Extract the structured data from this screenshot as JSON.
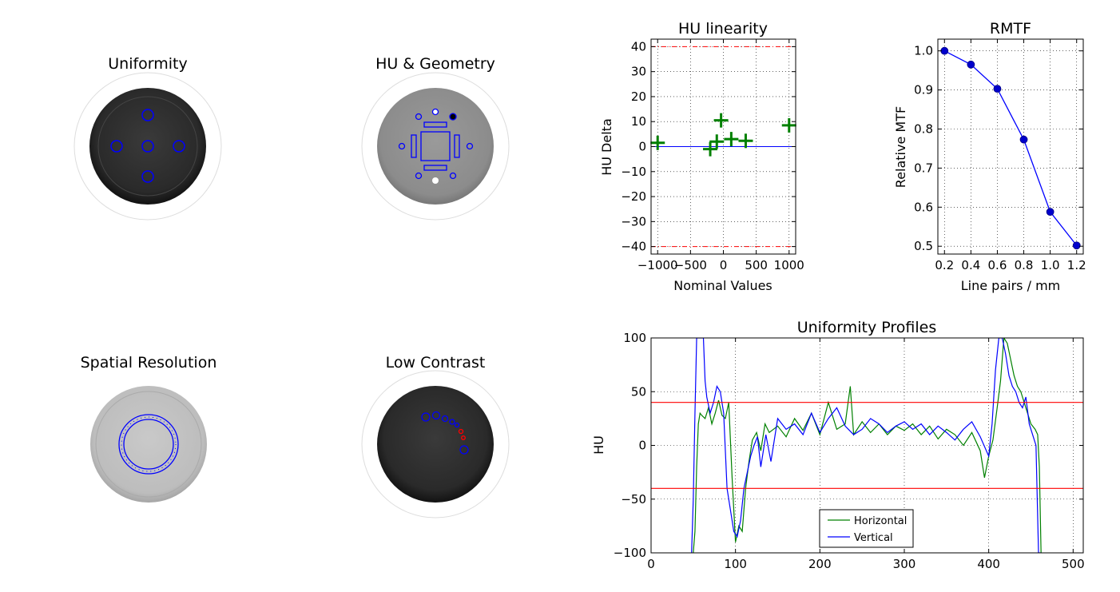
{
  "panels": {
    "uniformity_title": "Uniformity",
    "hu_geometry_title": "HU & Geometry",
    "spatial_resolution_title": "Spatial Resolution",
    "low_contrast_title": "Low Contrast"
  },
  "chart_data": [
    {
      "type": "scatter",
      "title": "HU linearity",
      "xlabel": "Nominal Values",
      "ylabel": "HU Delta",
      "xlim": [
        -1100,
        1100
      ],
      "ylim": [
        -43,
        43
      ],
      "xticks": [
        "−1000",
        "−500",
        "0",
        "500",
        "1000"
      ],
      "yticks": [
        "40",
        "30",
        "20",
        "10",
        "0",
        "−10",
        "−20",
        "−30",
        "−40"
      ],
      "x": [
        -1000,
        -200,
        -100,
        -35,
        120,
        340,
        1000
      ],
      "y": [
        1.5,
        -1,
        2,
        10.5,
        3,
        2.3,
        8.5
      ],
      "tolerance": [
        40,
        -40
      ],
      "grid": true
    },
    {
      "type": "line",
      "title": "RMTF",
      "xlabel": "Line pairs / mm",
      "ylabel": "Relative MTF",
      "xlim": [
        0.15,
        1.25
      ],
      "ylim": [
        0.48,
        1.03
      ],
      "xticks": [
        "0.2",
        "0.4",
        "0.6",
        "0.8",
        "1.0",
        "1.2"
      ],
      "yticks": [
        "1.0",
        "0.9",
        "0.8",
        "0.7",
        "0.6",
        "0.5"
      ],
      "x": [
        0.2,
        0.4,
        0.6,
        0.8,
        1.0,
        1.2
      ],
      "y": [
        1.0,
        0.965,
        0.903,
        0.773,
        0.588,
        0.502
      ],
      "grid": true
    },
    {
      "type": "line",
      "title": "Uniformity Profiles",
      "xlabel": "",
      "ylabel": "HU",
      "xlim": [
        0,
        512
      ],
      "ylim": [
        -100,
        100
      ],
      "xticks": [
        "0",
        "100",
        "200",
        "300",
        "400",
        "500"
      ],
      "yticks": [
        "100",
        "50",
        "0",
        "−50",
        "−100"
      ],
      "tolerance": [
        40,
        -40
      ],
      "legend_position": "lower-center",
      "grid": true,
      "series": [
        {
          "name": "Horizontal",
          "color": "#008000",
          "x": [
            50,
            52,
            54,
            56,
            58,
            60,
            64,
            68,
            72,
            76,
            80,
            84,
            88,
            92,
            96,
            100,
            104,
            108,
            112,
            116,
            120,
            125,
            130,
            135,
            140,
            150,
            160,
            170,
            180,
            190,
            200,
            210,
            220,
            230,
            236,
            240,
            250,
            260,
            270,
            280,
            290,
            300,
            310,
            320,
            330,
            340,
            350,
            360,
            370,
            380,
            390,
            395,
            400,
            405,
            410,
            414,
            418,
            422,
            426,
            430,
            434,
            438,
            442,
            446,
            450,
            455,
            458,
            460,
            462
          ],
          "y": [
            -100,
            -80,
            -20,
            20,
            30,
            28,
            25,
            35,
            20,
            30,
            42,
            28,
            25,
            40,
            -30,
            -90,
            -75,
            -80,
            -40,
            -15,
            5,
            12,
            -5,
            20,
            12,
            18,
            8,
            25,
            14,
            30,
            10,
            40,
            15,
            20,
            55,
            10,
            22,
            12,
            20,
            10,
            18,
            14,
            20,
            10,
            18,
            6,
            15,
            10,
            0,
            12,
            -5,
            -30,
            -10,
            5,
            35,
            60,
            100,
            95,
            80,
            65,
            55,
            50,
            40,
            30,
            20,
            15,
            10,
            -20,
            -100
          ]
        },
        {
          "name": "Vertical",
          "color": "#0000ff",
          "x": [
            48,
            50,
            52,
            54,
            56,
            58,
            60,
            62,
            64,
            66,
            70,
            74,
            78,
            82,
            86,
            90,
            94,
            98,
            102,
            106,
            110,
            114,
            118,
            122,
            126,
            130,
            136,
            142,
            150,
            160,
            170,
            180,
            190,
            200,
            210,
            220,
            230,
            240,
            250,
            260,
            270,
            280,
            290,
            300,
            310,
            320,
            330,
            340,
            350,
            360,
            370,
            380,
            390,
            400,
            404,
            408,
            412,
            416,
            420,
            424,
            428,
            432,
            436,
            440,
            444,
            448,
            452,
            456,
            459,
            462
          ],
          "y": [
            -100,
            -50,
            30,
            100,
            100,
            100,
            100,
            100,
            60,
            45,
            30,
            40,
            55,
            50,
            30,
            -40,
            -60,
            -80,
            -85,
            -70,
            -40,
            -25,
            -10,
            0,
            8,
            -20,
            10,
            -15,
            25,
            15,
            20,
            10,
            30,
            12,
            25,
            35,
            18,
            10,
            15,
            25,
            20,
            12,
            18,
            22,
            15,
            20,
            10,
            18,
            12,
            5,
            15,
            22,
            8,
            -10,
            20,
            70,
            100,
            100,
            85,
            65,
            55,
            50,
            40,
            35,
            45,
            20,
            10,
            0,
            -100,
            -100
          ]
        }
      ]
    }
  ]
}
